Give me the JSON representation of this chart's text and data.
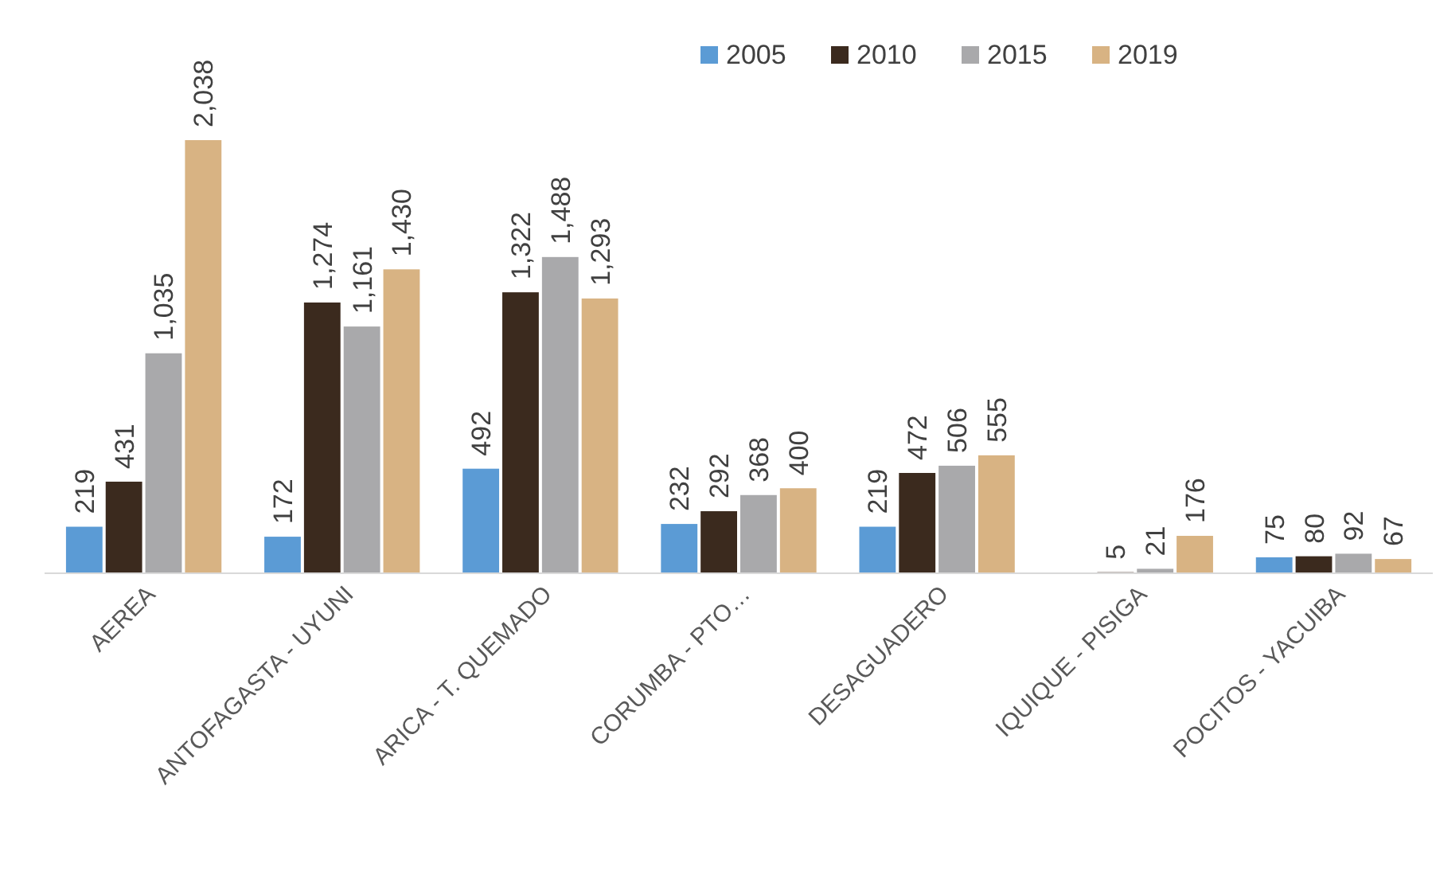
{
  "chart_data": {
    "type": "bar",
    "categories": [
      "AEREA",
      "ANTOFAGASTA - UYUNI",
      "ARICA - T. QUEMADO",
      "CORUMBA - PTO…",
      "DESAGUADERO",
      "IQUIQUE - PISIGA",
      "POCITOS - YACUIBA"
    ],
    "series": [
      {
        "name": "2005",
        "color": "#5b9bd5",
        "values": [
          219,
          172,
          492,
          232,
          219,
          null,
          75
        ],
        "value_labels": [
          "219",
          "172",
          "492",
          "232",
          "219",
          null,
          "75"
        ]
      },
      {
        "name": "2010",
        "color": "#3b2a1e",
        "values": [
          431,
          1274,
          1322,
          292,
          472,
          5,
          80
        ],
        "value_labels": [
          "431",
          "1,274",
          "1,322",
          "292",
          "472",
          "5",
          "80"
        ]
      },
      {
        "name": "2015",
        "color": "#a9a9ab",
        "values": [
          1035,
          1161,
          1488,
          368,
          506,
          21,
          92
        ],
        "value_labels": [
          "1,035",
          "1,161",
          "1,488",
          "368",
          "506",
          "21",
          "92"
        ]
      },
      {
        "name": "2019",
        "color": "#d8b383",
        "values": [
          2038,
          1430,
          1293,
          400,
          555,
          176,
          67
        ],
        "value_labels": [
          "2,038",
          "1,430",
          "1,293",
          "400",
          "555",
          "176",
          "67"
        ]
      }
    ],
    "legend": "top right"
  }
}
